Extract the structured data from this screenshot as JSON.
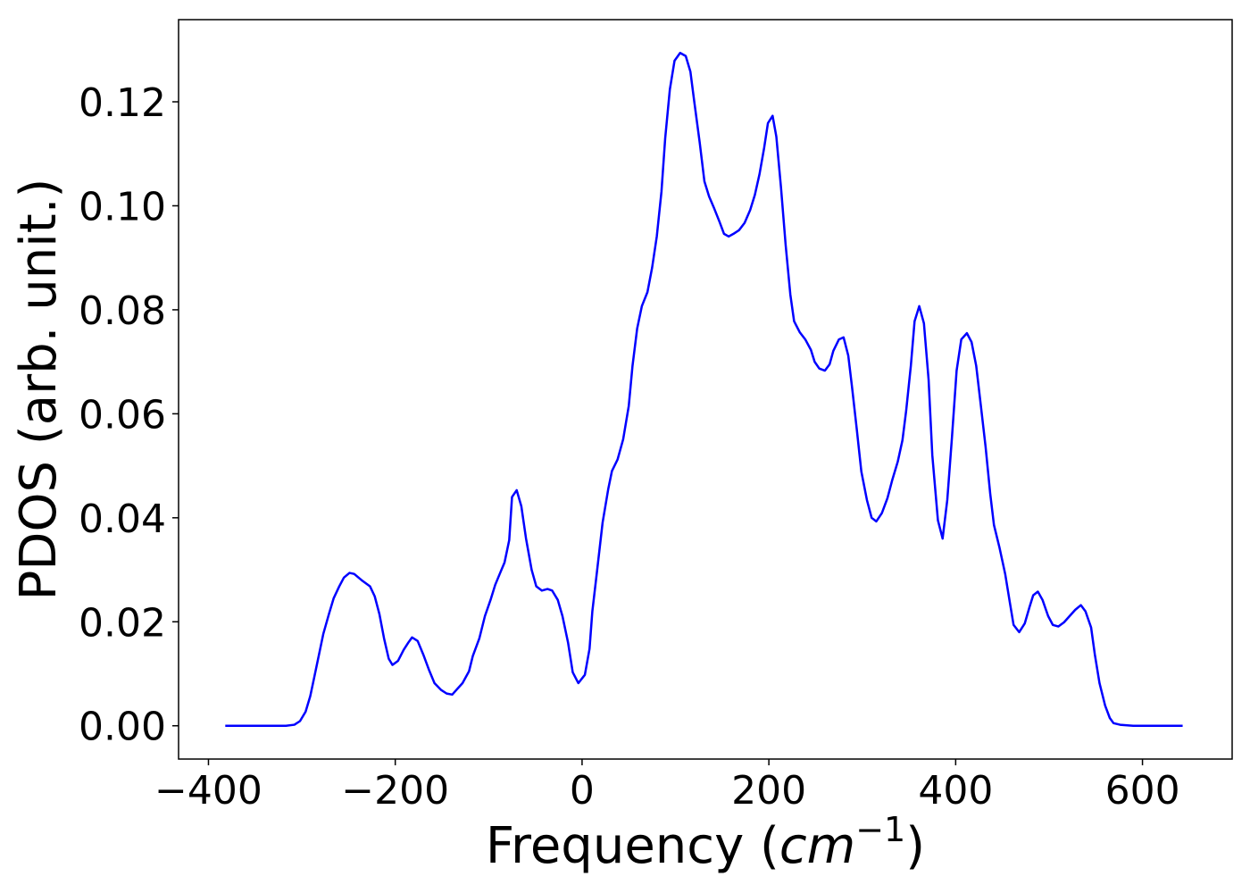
{
  "chart_data": {
    "type": "line",
    "xlabel": {
      "text": "Frequency (",
      "italic": "cm",
      "sup": "−1",
      "end": ")"
    },
    "ylabel": "PDOS (arb. unit.)",
    "color": "#0000ff",
    "x": [
      -382,
      -336,
      -317,
      -308,
      -302,
      -296,
      -291,
      -287,
      -282,
      -277,
      -271,
      -266,
      -260,
      -255,
      -249,
      -244,
      -238,
      -236,
      -227,
      -222,
      -217,
      -212,
      -207,
      -203,
      -197,
      -191,
      -186,
      -182,
      -176,
      -170,
      -164,
      -158,
      -151,
      -145,
      -139,
      -134,
      -128,
      -121,
      -117,
      -110,
      -104,
      -98,
      -93,
      -87,
      -83,
      -78,
      -75,
      -70,
      -65,
      -60,
      -54,
      -49,
      -43,
      -37,
      -32,
      -26,
      -21,
      -15,
      -10,
      -4,
      3,
      8,
      11,
      16,
      22,
      28,
      32,
      38,
      44,
      50,
      54,
      59,
      64,
      70,
      75,
      80,
      85,
      89,
      94,
      99,
      105,
      111,
      116,
      120,
      126,
      131,
      136,
      141,
      147,
      152,
      157,
      162,
      168,
      174,
      180,
      185,
      190,
      195,
      199,
      204,
      208,
      213,
      218,
      223,
      227,
      233,
      239,
      245,
      249,
      254,
      260,
      265,
      269,
      275,
      280,
      285,
      289,
      294,
      299,
      305,
      310,
      315,
      321,
      327,
      332,
      338,
      343,
      347,
      352,
      356,
      361,
      366,
      371,
      375,
      381,
      386,
      391,
      396,
      401,
      406,
      412,
      417,
      422,
      427,
      432,
      437,
      441,
      447,
      453,
      458,
      462,
      468,
      474,
      479,
      483,
      488,
      493,
      499,
      504,
      510,
      516,
      522,
      528,
      534,
      539,
      545,
      549,
      554,
      560,
      565,
      569,
      576,
      590,
      619,
      643
    ],
    "values": [
      0,
      0,
      0,
      0.0002,
      0.0009,
      0.0027,
      0.0057,
      0.0091,
      0.0134,
      0.0177,
      0.0215,
      0.0245,
      0.0268,
      0.0285,
      0.0294,
      0.0292,
      0.0283,
      0.028,
      0.0268,
      0.0249,
      0.0215,
      0.0168,
      0.0129,
      0.0117,
      0.0125,
      0.0146,
      0.016,
      0.017,
      0.0163,
      0.0137,
      0.0108,
      0.0082,
      0.0069,
      0.0062,
      0.006,
      0.007,
      0.0082,
      0.0105,
      0.0134,
      0.0168,
      0.0211,
      0.0242,
      0.0271,
      0.0297,
      0.0314,
      0.0357,
      0.044,
      0.0453,
      0.0422,
      0.036,
      0.03,
      0.0268,
      0.026,
      0.0263,
      0.026,
      0.0242,
      0.0211,
      0.016,
      0.0103,
      0.0082,
      0.0098,
      0.0148,
      0.022,
      0.0297,
      0.0391,
      0.0455,
      0.049,
      0.0512,
      0.0551,
      0.0615,
      0.0692,
      0.0764,
      0.0807,
      0.0834,
      0.0881,
      0.0941,
      0.1027,
      0.113,
      0.1224,
      0.1279,
      0.1294,
      0.1288,
      0.1258,
      0.1202,
      0.1121,
      0.1047,
      0.1018,
      0.0997,
      0.097,
      0.0946,
      0.0941,
      0.0946,
      0.0953,
      0.0967,
      0.0992,
      0.1021,
      0.1061,
      0.1112,
      0.1159,
      0.1173,
      0.1133,
      0.1035,
      0.0924,
      0.0829,
      0.0778,
      0.0757,
      0.0743,
      0.0723,
      0.07,
      0.0687,
      0.0683,
      0.0695,
      0.0721,
      0.0743,
      0.0747,
      0.0712,
      0.0652,
      0.0572,
      0.0489,
      0.0434,
      0.04,
      0.0393,
      0.0409,
      0.0438,
      0.0472,
      0.0508,
      0.0549,
      0.0606,
      0.0692,
      0.0778,
      0.0807,
      0.0774,
      0.0666,
      0.052,
      0.0395,
      0.036,
      0.0434,
      0.0554,
      0.0683,
      0.0743,
      0.0755,
      0.0738,
      0.0692,
      0.0615,
      0.0537,
      0.0446,
      0.0386,
      0.0342,
      0.0292,
      0.0237,
      0.0194,
      0.018,
      0.0197,
      0.0228,
      0.0251,
      0.0258,
      0.0242,
      0.0211,
      0.0194,
      0.0191,
      0.0199,
      0.0211,
      0.0223,
      0.0232,
      0.022,
      0.0189,
      0.0137,
      0.0082,
      0.0039,
      0.0015,
      0.0005,
      0.0002,
      0,
      0,
      0
    ],
    "xlim": [
      -432,
      696
    ],
    "ylim": [
      -0.0064,
      0.1358
    ],
    "xticks": [
      {
        "value": -400,
        "label": "−400"
      },
      {
        "value": -200,
        "label": "−200"
      },
      0,
      200,
      400,
      600
    ],
    "yticks": [
      {
        "value": 0,
        "label": "0.00"
      },
      {
        "value": 0.02,
        "label": "0.02"
      },
      {
        "value": 0.04,
        "label": "0.04"
      },
      {
        "value": 0.06,
        "label": "0.06"
      },
      {
        "value": 0.08,
        "label": "0.08"
      },
      {
        "value": 0.1,
        "label": "0.10"
      },
      {
        "value": 0.12,
        "label": "0.12"
      }
    ]
  }
}
